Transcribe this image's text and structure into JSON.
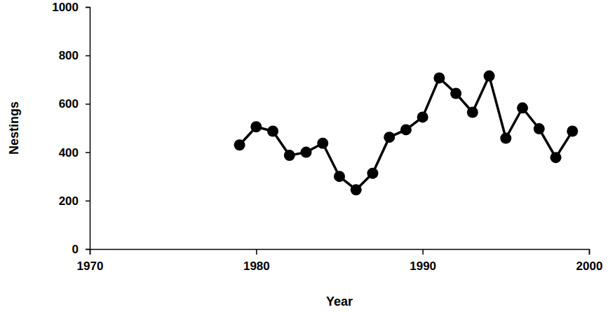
{
  "chart_data": {
    "type": "line",
    "x_label": "Year",
    "y_label": "Nestings",
    "x": [
      1979,
      1980,
      1981,
      1982,
      1983,
      1984,
      1985,
      1986,
      1987,
      1988,
      1989,
      1990,
      1991,
      1992,
      1993,
      1994,
      1995,
      1996,
      1997,
      1998,
      1999
    ],
    "values": [
      430,
      505,
      487,
      387,
      400,
      437,
      300,
      245,
      313,
      462,
      493,
      545,
      707,
      643,
      565,
      715,
      458,
      583,
      497,
      378,
      487
    ],
    "color": "#000000",
    "marker": "circle",
    "line_style": "solid",
    "xlim": [
      1970,
      2000
    ],
    "xticks": [
      1970,
      1980,
      1990,
      2000
    ],
    "ylim": [
      0,
      1000
    ],
    "yticks": [
      0,
      200,
      400,
      600,
      800,
      1000
    ],
    "grid": false
  }
}
